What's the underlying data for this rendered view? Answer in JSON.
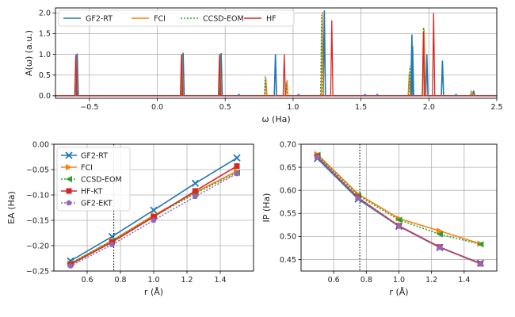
{
  "chart_data": [
    {
      "type": "line",
      "xlabel": "ω (Ha)",
      "ylabel": "A(ω) (a.u.)",
      "xlim": [
        -0.75,
        2.5
      ],
      "ylim": [
        -0.06,
        2.12
      ],
      "xticks": [
        -0.5,
        0.0,
        0.5,
        1.0,
        1.5,
        2.0,
        2.5
      ],
      "xtick_labels": [
        "−0.5",
        "0.0",
        "0.5",
        "1.0",
        "1.5",
        "2.0",
        "2.5"
      ],
      "yticks": [
        0.0,
        0.5,
        1.0,
        1.5,
        2.0
      ],
      "ytick_labels": [
        "0.0",
        "0.5",
        "1.0",
        "1.5",
        "2.0"
      ],
      "grid": true,
      "legend_position": "top",
      "series": [
        {
          "name": "GF2-RT",
          "color": "#1f77b4",
          "style": "solid",
          "peaks": [
            [
              -0.59,
              1.02
            ],
            [
              0.19,
              1.04
            ],
            [
              0.47,
              1.03
            ],
            [
              0.87,
              1.0
            ],
            [
              1.23,
              2.06
            ],
            [
              1.875,
              1.48
            ],
            [
              1.88,
              1.2
            ],
            [
              1.985,
              1.0
            ],
            [
              2.1,
              0.85
            ],
            [
              2.33,
              0.12
            ]
          ]
        },
        {
          "name": "FCI",
          "color": "#ff7f0e",
          "style": "solid",
          "peaks": [
            [
              -0.598,
              0.97
            ],
            [
              0.182,
              1.01
            ],
            [
              0.462,
              1.0
            ],
            [
              0.8,
              0.42
            ],
            [
              0.955,
              0.38
            ],
            [
              1.215,
              2.02
            ],
            [
              1.855,
              0.55
            ],
            [
              1.965,
              1.62
            ],
            [
              2.32,
              0.08
            ]
          ]
        },
        {
          "name": "CCSD-EOM",
          "color": "#2ca02c",
          "style": "dotted",
          "peaks": [
            [
              -0.6,
              0.95
            ],
            [
              0.18,
              1.0
            ],
            [
              0.46,
              0.98
            ],
            [
              0.795,
              0.48
            ],
            [
              0.95,
              0.32
            ],
            [
              1.21,
              1.95
            ],
            [
              1.86,
              0.72
            ],
            [
              1.96,
              1.65
            ],
            [
              2.31,
              0.1
            ]
          ]
        },
        {
          "name": "HF",
          "color": "#d62728",
          "style": "solid",
          "peaks": [
            [
              -0.6,
              0.99
            ],
            [
              0.178,
              1.0
            ],
            [
              0.458,
              1.0
            ],
            [
              0.935,
              1.0
            ],
            [
              1.285,
              1.82
            ],
            [
              1.96,
              1.55
            ],
            [
              2.035,
              2.0
            ]
          ]
        }
      ],
      "lowlevel_bumps": [
        0.6,
        1.04,
        1.53,
        1.62,
        2.2
      ]
    },
    {
      "type": "line",
      "xlabel": "r (Å)",
      "ylabel": "EA (Ha)",
      "xlim": [
        0.4,
        1.6
      ],
      "ylim": [
        -0.25,
        0.0
      ],
      "xticks": [
        0.6,
        0.8,
        1.0,
        1.2,
        1.4
      ],
      "xtick_labels": [
        "0.6",
        "0.8",
        "1.0",
        "1.2",
        "1.4"
      ],
      "yticks": [
        -0.25,
        -0.2,
        -0.15,
        -0.1,
        -0.05,
        0.0
      ],
      "ytick_labels": [
        "−0.25",
        "−0.20",
        "−0.15",
        "−0.10",
        "−0.05",
        "0.00"
      ],
      "grid": true,
      "vline_x": 0.76,
      "legend_position": "top-left",
      "x": [
        0.5,
        0.75,
        1.0,
        1.25,
        1.5
      ],
      "series": [
        {
          "name": "GF2-RT",
          "color": "#1f77b4",
          "marker": "x",
          "style": "solid",
          "values": [
            -0.23,
            -0.182,
            -0.13,
            -0.077,
            -0.027
          ]
        },
        {
          "name": "FCI",
          "color": "#ff7f0e",
          "marker": ">",
          "style": "solid",
          "values": [
            -0.235,
            -0.19,
            -0.14,
            -0.095,
            -0.053
          ]
        },
        {
          "name": "CCSD-EOM",
          "color": "#2ca02c",
          "marker": "<",
          "style": "dotted",
          "values": [
            -0.235,
            -0.19,
            -0.142,
            -0.097,
            -0.056
          ]
        },
        {
          "name": "HF-KT",
          "color": "#d62728",
          "marker": "s",
          "style": "solid",
          "values": [
            -0.237,
            -0.193,
            -0.143,
            -0.092,
            -0.043
          ]
        },
        {
          "name": "GF2-EKT",
          "color": "#9467bd",
          "marker": "p",
          "style": "dotted",
          "values": [
            -0.24,
            -0.198,
            -0.15,
            -0.103,
            -0.058
          ]
        }
      ]
    },
    {
      "type": "line",
      "xlabel": "r (Å)",
      "ylabel": "IP (Ha)",
      "xlim": [
        0.4,
        1.6
      ],
      "ylim": [
        0.425,
        0.7
      ],
      "xticks": [
        0.6,
        0.8,
        1.0,
        1.2,
        1.4
      ],
      "xtick_labels": [
        "0.6",
        "0.8",
        "1.0",
        "1.2",
        "1.4"
      ],
      "yticks": [
        0.45,
        0.5,
        0.55,
        0.6,
        0.65,
        0.7
      ],
      "ytick_labels": [
        "0.45",
        "0.50",
        "0.55",
        "0.60",
        "0.65",
        "0.70"
      ],
      "grid": true,
      "vline_x": 0.76,
      "x": [
        0.5,
        0.75,
        1.0,
        1.25,
        1.5
      ],
      "series": [
        {
          "name": "GF2-RT",
          "color": "#1f77b4",
          "marker": "x",
          "style": "solid",
          "values": [
            0.669,
            0.581,
            0.522,
            0.476,
            0.442
          ]
        },
        {
          "name": "FCI",
          "color": "#ff7f0e",
          "marker": ">",
          "style": "solid",
          "values": [
            0.678,
            0.592,
            0.539,
            0.512,
            0.484
          ]
        },
        {
          "name": "CCSD-EOM",
          "color": "#2ca02c",
          "marker": "<",
          "style": "dotted",
          "values": [
            0.677,
            0.589,
            0.536,
            0.505,
            0.483
          ]
        },
        {
          "name": "HF-KT",
          "color": "#d62728",
          "marker": "s",
          "style": "solid",
          "values": [
            0.673,
            0.584,
            0.523,
            0.477,
            0.441
          ]
        },
        {
          "name": "GF2-EKT",
          "color": "#9467bd",
          "marker": "p",
          "style": "dotted",
          "values": [
            0.672,
            0.583,
            0.522,
            0.476,
            0.44
          ]
        }
      ]
    }
  ]
}
